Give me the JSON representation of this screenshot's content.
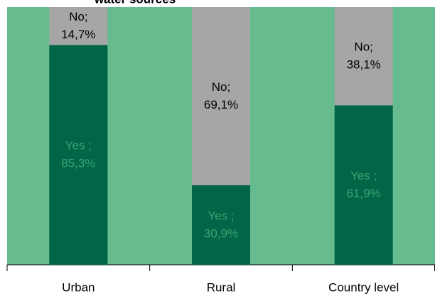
{
  "chart_data": {
    "type": "stacked-bar",
    "title": "water sources",
    "categories": [
      "Urban",
      "Rural",
      "Country level"
    ],
    "series": [
      {
        "name": "Yes ;",
        "color": "#006647",
        "values": [
          85.3,
          30.9,
          61.9
        ],
        "value_labels": [
          "85,3%",
          "30,9%",
          "61,9%"
        ]
      },
      {
        "name": "No;",
        "color": "#a6a6a6",
        "values": [
          14.7,
          69.1,
          38.1
        ],
        "value_labels": [
          "14,7%",
          "69,1%",
          "38,1%"
        ]
      }
    ],
    "ylim": [
      0,
      100
    ],
    "background": "#66bb8f"
  }
}
